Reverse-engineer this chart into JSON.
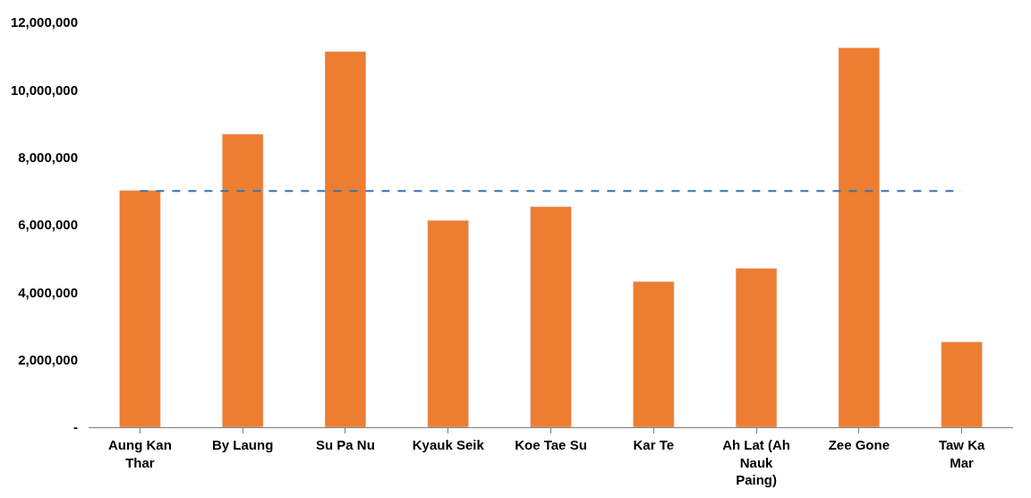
{
  "chart_data": {
    "type": "bar",
    "categories": [
      "Aung Kan\nThar",
      "By Laung",
      "Su Pa Nu",
      "Kyauk Seik",
      "Koe Tae Su",
      "Kar Te",
      "Ah Lat (Ah\nNauk\nPaing)",
      "Zee Gone",
      "Taw Ka\nMar"
    ],
    "values": [
      7020000,
      8690000,
      11140000,
      6130000,
      6540000,
      4320000,
      4710000,
      11250000,
      2530000
    ],
    "color": "#ed7d31",
    "ylim": [
      0,
      12000000
    ],
    "yticks": [
      {
        "value": 0,
        "label": "-"
      },
      {
        "value": 2000000,
        "label": "2,000,000"
      },
      {
        "value": 4000000,
        "label": "4,000,000"
      },
      {
        "value": 6000000,
        "label": "6,000,000"
      },
      {
        "value": 8000000,
        "label": "8,000,000"
      },
      {
        "value": 10000000,
        "label": "10,000,000"
      },
      {
        "value": 12000000,
        "label": "12,000,000"
      }
    ],
    "ref_lines": [
      {
        "axis": "y",
        "value": 7000000,
        "label": null,
        "color": "#2e75b6",
        "line_style": "dashed"
      }
    ]
  }
}
